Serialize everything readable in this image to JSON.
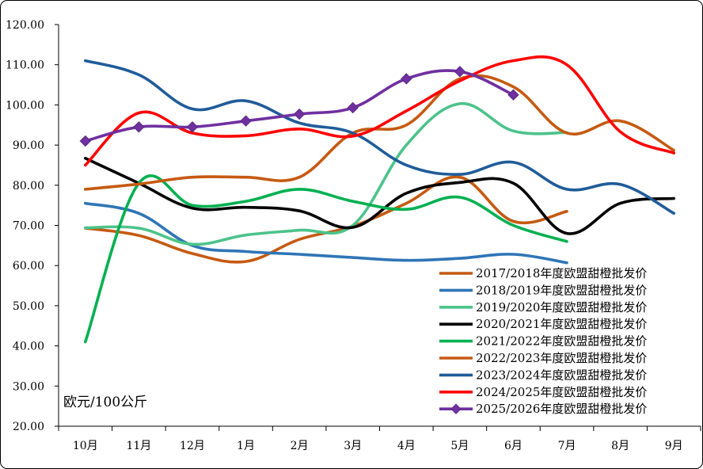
{
  "chart_data": {
    "type": "line",
    "title": "",
    "xlabel": "",
    "ylabel": "欧元/100公斤",
    "ylim": [
      20,
      120
    ],
    "yticks": [
      "20.00",
      "30.00",
      "40.00",
      "50.00",
      "60.00",
      "70.00",
      "80.00",
      "90.00",
      "100.00",
      "110.00",
      "120.00"
    ],
    "categories": [
      "10月",
      "11月",
      "12月",
      "1月",
      "2月",
      "3月",
      "4月",
      "5月",
      "6月",
      "7月",
      "8月",
      "9月"
    ],
    "grid": false,
    "legend_position": "bottom-right",
    "series": [
      {
        "name": "2017/2018年度欧盟甜橙批发价",
        "color": "#C55A11",
        "marker": "none",
        "values": [
          69.3,
          67.5,
          63.0,
          61.0,
          66.5,
          69.8,
          75.5,
          82.0,
          71.0,
          73.5,
          null,
          null
        ]
      },
      {
        "name": "2018/2019年度欧盟甜橙批发价",
        "color": "#2E75B6",
        "marker": "none",
        "values": [
          75.5,
          73.0,
          65.0,
          63.5,
          62.8,
          62.0,
          61.3,
          61.8,
          62.8,
          60.7,
          null,
          null
        ]
      },
      {
        "name": "2019/2020年度欧盟甜橙批发价",
        "color": "#4CC38A",
        "marker": "none",
        "values": [
          69.4,
          69.3,
          65.3,
          67.6,
          68.8,
          70.0,
          90.0,
          100.3,
          93.5,
          93.1,
          null,
          null
        ]
      },
      {
        "name": "2020/2021年度欧盟甜橙批发价",
        "color": "#000000",
        "marker": "none",
        "values": [
          86.7,
          80.5,
          74.3,
          74.5,
          73.6,
          69.5,
          78.0,
          80.7,
          80.5,
          68.0,
          75.5,
          76.7
        ]
      },
      {
        "name": "2021/2022年度欧盟甜橙批发价",
        "color": "#00B050",
        "marker": "none",
        "values": [
          41.0,
          80.5,
          75.0,
          76.0,
          79.0,
          76.0,
          74.0,
          77.0,
          70.0,
          66.0,
          null,
          null
        ]
      },
      {
        "name": "2022/2023年度欧盟甜橙批发价",
        "color": "#C55A11",
        "marker": "none",
        "values": [
          79.0,
          80.3,
          82.0,
          82.0,
          82.0,
          93.0,
          95.0,
          106.5,
          104.5,
          93.0,
          96.0,
          88.7
        ]
      },
      {
        "name": "2023/2024年度欧盟甜橙批发价",
        "color": "#1F5C99",
        "marker": "none",
        "values": [
          111.0,
          107.5,
          99.0,
          101.0,
          95.5,
          93.0,
          85.0,
          82.7,
          85.7,
          79.0,
          80.2,
          73.0
        ]
      },
      {
        "name": "2024/2025年度欧盟甜橙批发价",
        "color": "#FF0000",
        "marker": "none",
        "values": [
          85.0,
          98.0,
          93.0,
          92.3,
          94.0,
          92.2,
          98.5,
          106.0,
          111.0,
          110.0,
          93.3,
          88.0
        ]
      },
      {
        "name": "2025/2026年度欧盟甜橙批发价",
        "color": "#7030A0",
        "marker": "diamond",
        "values": [
          91.0,
          94.5,
          94.5,
          96.0,
          97.7,
          99.3,
          106.5,
          108.3,
          102.5,
          null,
          null,
          null
        ]
      }
    ]
  }
}
